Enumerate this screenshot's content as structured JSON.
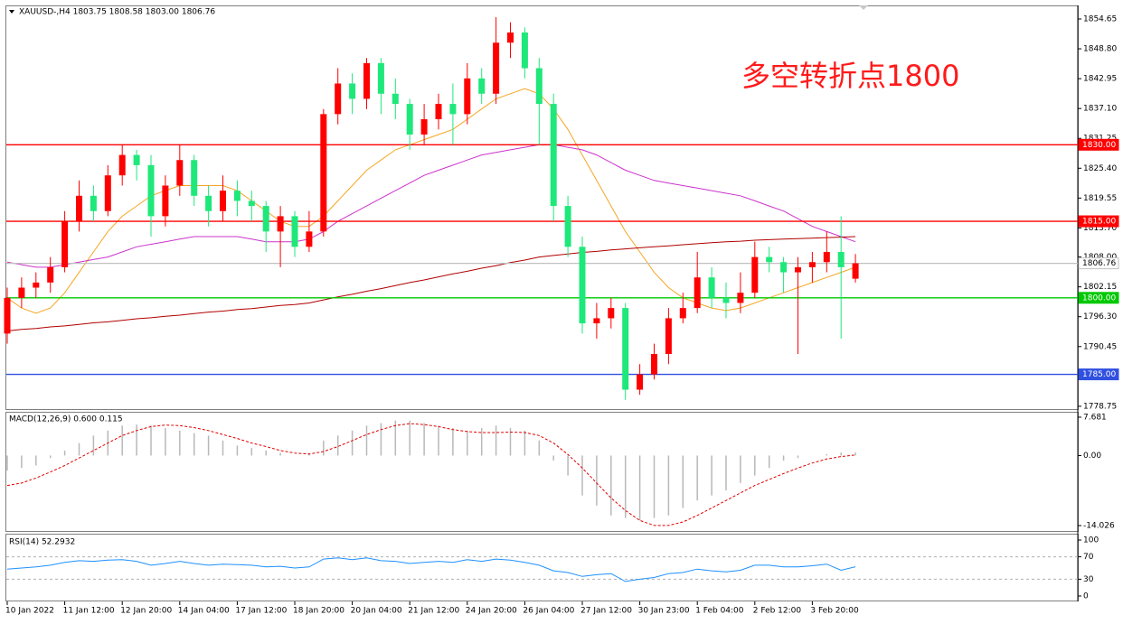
{
  "chart_data": [
    {
      "type": "candlestick",
      "title": "XAUUSD-,H4  1803.75 1808.58 1803.00 1806.76",
      "annotation": "多空转折点1800",
      "categories": [
        "10 Jan 2022",
        null,
        null,
        null,
        "11 Jan 12:00",
        null,
        null,
        null,
        "12 Jan 20:00",
        null,
        null,
        null,
        "14 Jan 04:00",
        null,
        null,
        null,
        "17 Jan 12:00",
        null,
        null,
        null,
        "18 Jan 20:00",
        null,
        null,
        null,
        "20 Jan 04:00",
        null,
        null,
        null,
        "21 Jan 12:00",
        null,
        null,
        null,
        "24 Jan 20:00",
        null,
        null,
        null,
        "26 Jan 04:00",
        null,
        null,
        null,
        "27 Jan 12:00",
        null,
        null,
        null,
        "30 Jan 23:00",
        null,
        null,
        null,
        "1 Feb 04:00",
        null,
        null,
        null,
        "2 Feb 12:00",
        null,
        null,
        null,
        "3 Feb 20:00",
        null,
        null,
        null
      ],
      "open": [
        1793,
        1800,
        1802,
        1803,
        1806,
        1815,
        1820,
        1817,
        1824,
        1828,
        1826,
        1816,
        1822,
        1827,
        1820,
        1817,
        1821,
        1819,
        1818,
        1813,
        1816,
        1810,
        1813,
        1836,
        1842,
        1839,
        1846,
        1840,
        1838,
        1832,
        1835,
        1838,
        1836,
        1843,
        1840,
        1850,
        1852,
        1845,
        1838,
        1818,
        1810,
        1795,
        1796,
        1798,
        1782,
        1785,
        1789,
        1796,
        1798,
        1804,
        1800,
        1799,
        1801,
        1808,
        1807,
        1805,
        1806,
        1807,
        1809,
        1803.75
      ],
      "high": [
        1802,
        1804,
        1805,
        1808,
        1817,
        1823,
        1822,
        1826,
        1830,
        1829,
        1828,
        1824,
        1830,
        1828,
        1822,
        1824,
        1823,
        1821,
        1819,
        1818,
        1817,
        1817,
        1837,
        1845,
        1844,
        1847,
        1847,
        1843,
        1839,
        1838,
        1840,
        1842,
        1846,
        1845,
        1855,
        1854,
        1853,
        1847,
        1840,
        1820,
        1812,
        1799,
        1800,
        1799,
        1787,
        1791,
        1798,
        1801,
        1809,
        1806,
        1803,
        1805,
        1811,
        1810,
        1808,
        1808,
        1809,
        1813,
        1816,
        1808.58
      ],
      "low": [
        1791,
        1798,
        1800,
        1801,
        1805,
        1813,
        1815,
        1816,
        1822,
        1823,
        1812,
        1814,
        1820,
        1818,
        1814,
        1815,
        1816,
        1815,
        1809,
        1806,
        1808,
        1809,
        1812,
        1834,
        1836,
        1837,
        1836,
        1835,
        1829,
        1830,
        1833,
        1830,
        1834,
        1838,
        1838,
        1847,
        1843,
        1830,
        1815,
        1808,
        1793,
        1792,
        1794,
        1780,
        1781,
        1784,
        1787,
        1795,
        1797,
        1798,
        1796,
        1797,
        1800,
        1805,
        1801,
        1789,
        1803,
        1805,
        1792,
        1803.0
      ],
      "close": [
        1800,
        1802,
        1803,
        1806,
        1815,
        1820,
        1817,
        1824,
        1828,
        1826,
        1816,
        1822,
        1827,
        1820,
        1817,
        1821,
        1819,
        1818,
        1813,
        1816,
        1810,
        1813,
        1836,
        1842,
        1839,
        1846,
        1840,
        1838,
        1832,
        1835,
        1838,
        1836,
        1843,
        1840,
        1850,
        1852,
        1845,
        1838,
        1818,
        1810,
        1795,
        1796,
        1798,
        1782,
        1785,
        1789,
        1796,
        1798,
        1804,
        1800,
        1799,
        1801,
        1808,
        1807,
        1805,
        1806,
        1807,
        1809,
        1806,
        1806.76
      ],
      "up_color": "#ff0000",
      "down_color": "#1ee87a",
      "moving_averages": [
        {
          "color": "#f5a623",
          "values": [
            1800,
            1798,
            1797,
            1798,
            1801,
            1805,
            1809,
            1813,
            1816,
            1818,
            1820,
            1821,
            1822,
            1822,
            1822,
            1822,
            1821,
            1819,
            1817,
            1815,
            1814,
            1814,
            1816,
            1819,
            1822,
            1825,
            1827,
            1829,
            1830,
            1831,
            1832,
            1833,
            1835,
            1837,
            1839,
            1840,
            1841,
            1840,
            1837,
            1833,
            1828,
            1823,
            1818,
            1813,
            1809,
            1805,
            1802,
            1800,
            1799,
            1798,
            1797.5,
            1798,
            1799,
            1800,
            1801,
            1802,
            1803,
            1804,
            1805,
            1806
          ]
        },
        {
          "color": "#cc33cc",
          "values": [
            1807,
            1806.5,
            1806,
            1806,
            1806.5,
            1807,
            1807.5,
            1808,
            1809,
            1810,
            1810.5,
            1811,
            1811.5,
            1812,
            1812,
            1812,
            1812,
            1811.5,
            1811,
            1811,
            1811,
            1811.5,
            1813,
            1815,
            1816.5,
            1818,
            1819.5,
            1821,
            1822.5,
            1824,
            1825,
            1826,
            1827,
            1828,
            1828.5,
            1829,
            1829.5,
            1830,
            1830,
            1829.5,
            1829,
            1828,
            1826.5,
            1825,
            1824,
            1823,
            1822.5,
            1822,
            1821.5,
            1821,
            1820.5,
            1820,
            1819,
            1818,
            1817,
            1815.5,
            1814,
            1813,
            1812,
            1811
          ]
        },
        {
          "color": "#b00000",
          "values": [
            1793.5,
            1793.8,
            1794,
            1794.3,
            1794.5,
            1794.8,
            1795.1,
            1795.3,
            1795.6,
            1795.9,
            1796.1,
            1796.4,
            1796.6,
            1796.9,
            1797.2,
            1797.4,
            1797.7,
            1797.9,
            1798.2,
            1798.5,
            1798.7,
            1799,
            1799.6,
            1800.2,
            1800.7,
            1801.3,
            1801.8,
            1802.4,
            1803,
            1803.5,
            1804.1,
            1804.7,
            1805.2,
            1805.8,
            1806.3,
            1806.9,
            1807.4,
            1808,
            1808.3,
            1808.6,
            1808.9,
            1809.1,
            1809.4,
            1809.6,
            1809.8,
            1810,
            1810.2,
            1810.4,
            1810.6,
            1810.8,
            1811,
            1811.1,
            1811.3,
            1811.4,
            1811.5,
            1811.6,
            1811.7,
            1811.8,
            1811.9,
            1812
          ]
        }
      ],
      "ylim": [
        1778.2,
        1856.95
      ],
      "yticks": [
        1854.65,
        {
          "value": 1848.8,
          "label": "1848.80"
        },
        1842.95,
        {
          "value": 1837.1,
          "label": "1837.10"
        },
        1831.25,
        {
          "value": 1825.4,
          "label": "1825.40"
        },
        1819.55,
        {
          "value": 1813.7,
          "label": "1813.70"
        },
        {
          "value": 1808,
          "label": "1808.00"
        },
        1802.15,
        {
          "value": 1796.3,
          "label": "1796.30"
        },
        1790.45,
        1778.75
      ],
      "levels": [
        {
          "value": 1830,
          "label": "1830.00",
          "color": "#ff0000"
        },
        {
          "value": 1815,
          "label": "1815.00",
          "color": "#ff0000"
        },
        {
          "value": 1806.76,
          "label": "1806.76",
          "color": "#c0c0c0"
        },
        {
          "value": 1800,
          "label": "1800.00",
          "color": "#00c800"
        },
        {
          "value": 1785,
          "label": "1785.00",
          "color": "#3050e0"
        }
      ]
    },
    {
      "type": "macd",
      "title": "MACD(12,26,9) 0.600 0.115",
      "histogram": [
        -3,
        -2.5,
        -2,
        -0.5,
        1,
        2.5,
        4,
        5,
        6,
        6.2,
        6,
        5.5,
        5,
        4.5,
        4,
        3,
        2,
        1.5,
        1,
        0.5,
        0,
        0.5,
        3,
        4,
        5,
        6,
        6.5,
        7,
        7,
        6.5,
        6,
        5.5,
        5,
        5.5,
        6,
        5.5,
        5,
        3,
        -1,
        -4,
        -8,
        -10,
        -12,
        -12.5,
        -13,
        -12.5,
        -12,
        -10.5,
        -9,
        -8,
        -7,
        -5.5,
        -4,
        -2.5,
        -1,
        -0.5,
        0,
        0.3,
        0.6,
        0.6
      ],
      "signal": [
        -6,
        -5.5,
        -4.5,
        -3.3,
        -2,
        -0.5,
        1,
        2.5,
        4,
        5,
        5.8,
        6.1,
        6,
        5.6,
        5,
        4.2,
        3.4,
        2.5,
        1.8,
        1,
        0.5,
        0.3,
        0.8,
        1.8,
        3,
        4.2,
        5.2,
        6,
        6.4,
        6.2,
        5.8,
        5.2,
        4.8,
        4.6,
        4.6,
        4.7,
        4.6,
        4,
        2.5,
        0.2,
        -2.5,
        -5.5,
        -8.5,
        -11,
        -13,
        -14,
        -14,
        -13.3,
        -12,
        -10.5,
        -9,
        -7.5,
        -6,
        -4.8,
        -3.6,
        -2.5,
        -1.5,
        -0.7,
        -0.2,
        0.115
      ],
      "histogram_color": "#b8b8b8",
      "signal_color": "#e00000",
      "ylim": [
        -15.11,
        8.4
      ],
      "yticks": [
        7.681,
        {
          "value": 0,
          "label": "0.00"
        },
        -14.026
      ]
    },
    {
      "type": "line",
      "title": "RSI(14) 52.2932",
      "values": [
        48,
        50,
        52,
        55,
        60,
        63,
        62,
        64,
        65,
        62,
        55,
        58,
        62,
        58,
        55,
        57,
        56,
        55,
        52,
        53,
        50,
        52,
        66,
        68,
        65,
        68,
        63,
        62,
        58,
        60,
        62,
        60,
        65,
        62,
        66,
        64,
        60,
        55,
        45,
        42,
        35,
        38,
        40,
        26,
        30,
        33,
        40,
        42,
        48,
        45,
        43,
        46,
        55,
        55,
        52,
        52,
        54,
        57,
        46,
        52.2932
      ],
      "color": "#1e90ff",
      "ylim": [
        -6.5,
        106.5
      ],
      "yticks": [
        100,
        70,
        30,
        0
      ],
      "levels": [
        70,
        30
      ]
    }
  ]
}
